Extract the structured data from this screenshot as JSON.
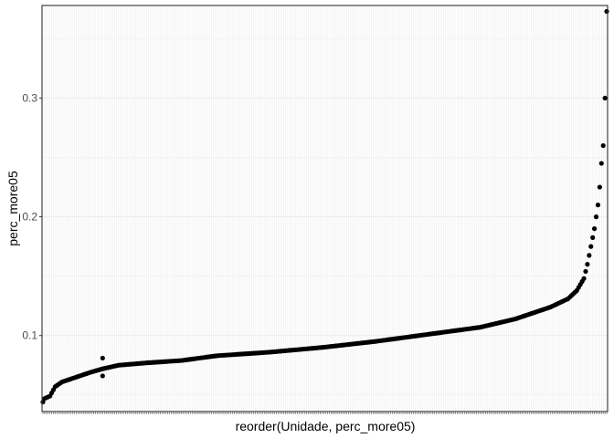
{
  "chart_data": {
    "type": "scatter",
    "title": "",
    "xlabel": "reorder(Unidade, perc_more05)",
    "ylabel": "perc_more05",
    "x_tick_labels_visible": false,
    "n_points": 322,
    "ylim": [
      0.036,
      0.378
    ],
    "y_ticks": [
      0.1,
      0.2,
      0.3
    ],
    "y_tick_labels": [
      "0.1",
      "0.2",
      "0.3"
    ],
    "grid": true,
    "point_color": "#000000",
    "panel_background": "#ffffff",
    "gridline_color": "#ebebeb",
    "border_color": "#333333",
    "shape": [
      {
        "rank": 1,
        "value": 0.044
      },
      {
        "rank": 2,
        "value": 0.047
      },
      {
        "rank": 5,
        "value": 0.049
      },
      {
        "rank": 8,
        "value": 0.057
      },
      {
        "rank": 12,
        "value": 0.061
      },
      {
        "rank": 20,
        "value": 0.065
      },
      {
        "rank": 28,
        "value": 0.069
      },
      {
        "rank": 35,
        "value": 0.072
      },
      {
        "rank": 44,
        "value": 0.075
      },
      {
        "rank": 60,
        "value": 0.077
      },
      {
        "rank": 80,
        "value": 0.079
      },
      {
        "rank": 100,
        "value": 0.083
      },
      {
        "rank": 130,
        "value": 0.086
      },
      {
        "rank": 160,
        "value": 0.09
      },
      {
        "rank": 190,
        "value": 0.095
      },
      {
        "rank": 220,
        "value": 0.101
      },
      {
        "rank": 250,
        "value": 0.107
      },
      {
        "rank": 270,
        "value": 0.114
      },
      {
        "rank": 290,
        "value": 0.124
      },
      {
        "rank": 300,
        "value": 0.131
      },
      {
        "rank": 305,
        "value": 0.138
      },
      {
        "rank": 309,
        "value": 0.148
      },
      {
        "rank": 311,
        "value": 0.16
      },
      {
        "rank": 313,
        "value": 0.175
      },
      {
        "rank": 315,
        "value": 0.19
      },
      {
        "rank": 317,
        "value": 0.21
      },
      {
        "rank": 318,
        "value": 0.225
      },
      {
        "rank": 319,
        "value": 0.245
      },
      {
        "rank": 320,
        "value": 0.26
      },
      {
        "rank": 321,
        "value": 0.3
      },
      {
        "rank": 322,
        "value": 0.373
      }
    ],
    "outliers": [
      {
        "rank": 35,
        "value": 0.081
      },
      {
        "rank": 35,
        "value": 0.066
      }
    ]
  }
}
